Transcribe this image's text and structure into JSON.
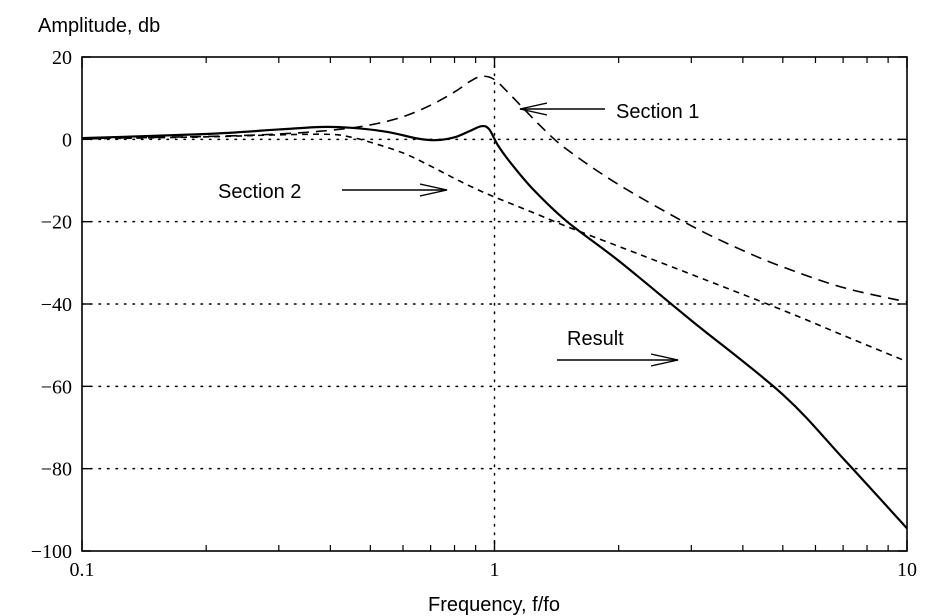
{
  "chart_data": {
    "type": "line",
    "title": "",
    "ylabel": "Amplitude, db",
    "xlabel": "Frequency, f/fo",
    "x_scale": "log",
    "xlim": [
      0.1,
      10
    ],
    "ylim": [
      -100,
      20
    ],
    "grid": "dotted, at major ticks",
    "x_ticks": [
      {
        "value": 0.1,
        "label": "0.1"
      },
      {
        "value": 1,
        "label": "1"
      },
      {
        "value": 10,
        "label": "10"
      }
    ],
    "y_ticks": [
      {
        "value": 20,
        "label": "20"
      },
      {
        "value": 0,
        "label": "0"
      },
      {
        "value": -20,
        "label": "−20"
      },
      {
        "value": -40,
        "label": "−40"
      },
      {
        "value": -60,
        "label": "−60"
      },
      {
        "value": -80,
        "label": "−80"
      },
      {
        "value": -100,
        "label": "−100"
      }
    ],
    "series": [
      {
        "name": "Section 1",
        "style": "long-dashed",
        "points": [
          [
            0.1,
            0.2
          ],
          [
            0.2,
            0.7
          ],
          [
            0.3,
            1.3
          ],
          [
            0.4,
            2.2
          ],
          [
            0.5,
            3.5
          ],
          [
            0.6,
            5.5
          ],
          [
            0.7,
            8.3
          ],
          [
            0.8,
            11.5
          ],
          [
            0.87,
            14
          ],
          [
            0.93,
            15.3
          ],
          [
            1.0,
            14.5
          ],
          [
            1.1,
            10.5
          ],
          [
            1.3,
            3
          ],
          [
            1.5,
            -2.5
          ],
          [
            2.0,
            -11
          ],
          [
            3.0,
            -21
          ],
          [
            4.0,
            -27
          ],
          [
            5.0,
            -31
          ],
          [
            7.0,
            -36
          ],
          [
            10,
            -39.5
          ]
        ]
      },
      {
        "name": "Section 2",
        "style": "short-dashed",
        "points": [
          [
            0.1,
            0.1
          ],
          [
            0.2,
            0.6
          ],
          [
            0.3,
            1.1
          ],
          [
            0.4,
            1.2
          ],
          [
            0.45,
            0.5
          ],
          [
            0.5,
            -0.7
          ],
          [
            0.6,
            -3.3
          ],
          [
            0.7,
            -6.5
          ],
          [
            0.8,
            -9.5
          ],
          [
            0.9,
            -12
          ],
          [
            1.0,
            -14
          ],
          [
            1.2,
            -17.2
          ],
          [
            1.5,
            -21.2
          ],
          [
            2.0,
            -26
          ],
          [
            3.0,
            -32.8
          ],
          [
            5.0,
            -41.5
          ],
          [
            7.0,
            -47.6
          ],
          [
            10,
            -54
          ]
        ]
      },
      {
        "name": "Result",
        "style": "solid",
        "points": [
          [
            0.1,
            0.3
          ],
          [
            0.2,
            1.3
          ],
          [
            0.3,
            2.4
          ],
          [
            0.38,
            3.0
          ],
          [
            0.45,
            2.8
          ],
          [
            0.55,
            1.8
          ],
          [
            0.65,
            0.2
          ],
          [
            0.72,
            -0.2
          ],
          [
            0.8,
            0.5
          ],
          [
            0.87,
            2
          ],
          [
            0.93,
            3.2
          ],
          [
            0.97,
            2.5
          ],
          [
            1.02,
            -1.5
          ],
          [
            1.1,
            -6
          ],
          [
            1.25,
            -12.5
          ],
          [
            1.5,
            -20
          ],
          [
            2.0,
            -29.5
          ],
          [
            3.0,
            -44
          ],
          [
            5.0,
            -62
          ],
          [
            7.0,
            -77.5
          ],
          [
            10,
            -94.5
          ]
        ]
      }
    ],
    "annotations": [
      {
        "text": "Section 1",
        "points_to": "Section 1"
      },
      {
        "text": "Section 2",
        "points_to": "Section 2"
      },
      {
        "text": "Result",
        "points_to": "Result"
      }
    ]
  }
}
